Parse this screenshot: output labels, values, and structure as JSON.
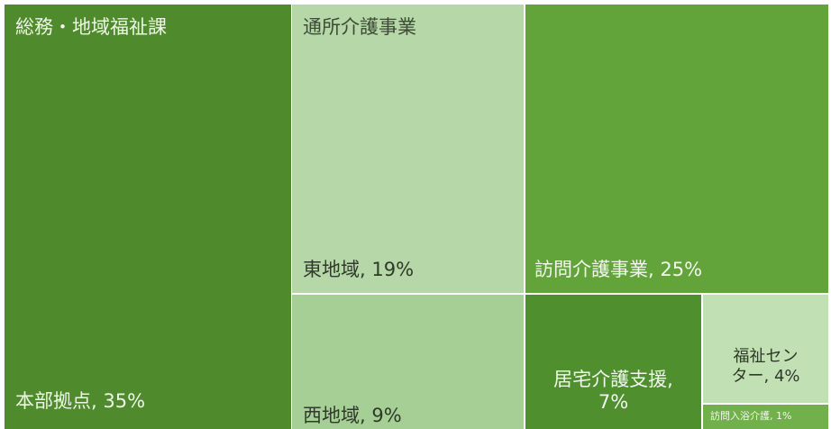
{
  "chart_data": {
    "type": "treemap",
    "unit": "%",
    "groups": [
      {
        "name": "総務・地域福祉課",
        "items": [
          {
            "name": "本部拠点",
            "label": "本部拠点, 35%",
            "value": 35,
            "color": "#4f8a2c"
          }
        ]
      },
      {
        "name": "通所介護事業",
        "items": [
          {
            "name": "東地域",
            "label": "東地域, 19%",
            "value": 19,
            "color": "#b6d7a8"
          },
          {
            "name": "西地域",
            "label": "西地域, 9%",
            "value": 9,
            "color": "#a6cf96"
          }
        ]
      },
      {
        "name": "",
        "items": [
          {
            "name": "訪問介護事業",
            "label": "訪問介護事業, 25%",
            "value": 25,
            "color": "#62a33a"
          },
          {
            "name": "居宅介護支援",
            "label": "居宅介護支援,\n7%",
            "value": 7,
            "color": "#4f8f2e"
          },
          {
            "name": "福祉センター",
            "label": "福祉セン\nター, 4%",
            "value": 4,
            "color": "#c1e0b3"
          },
          {
            "name": "訪問入浴介護",
            "label": "訪問入浴介護, 1%",
            "value": 1,
            "color": "#72b04c"
          }
        ]
      }
    ]
  }
}
